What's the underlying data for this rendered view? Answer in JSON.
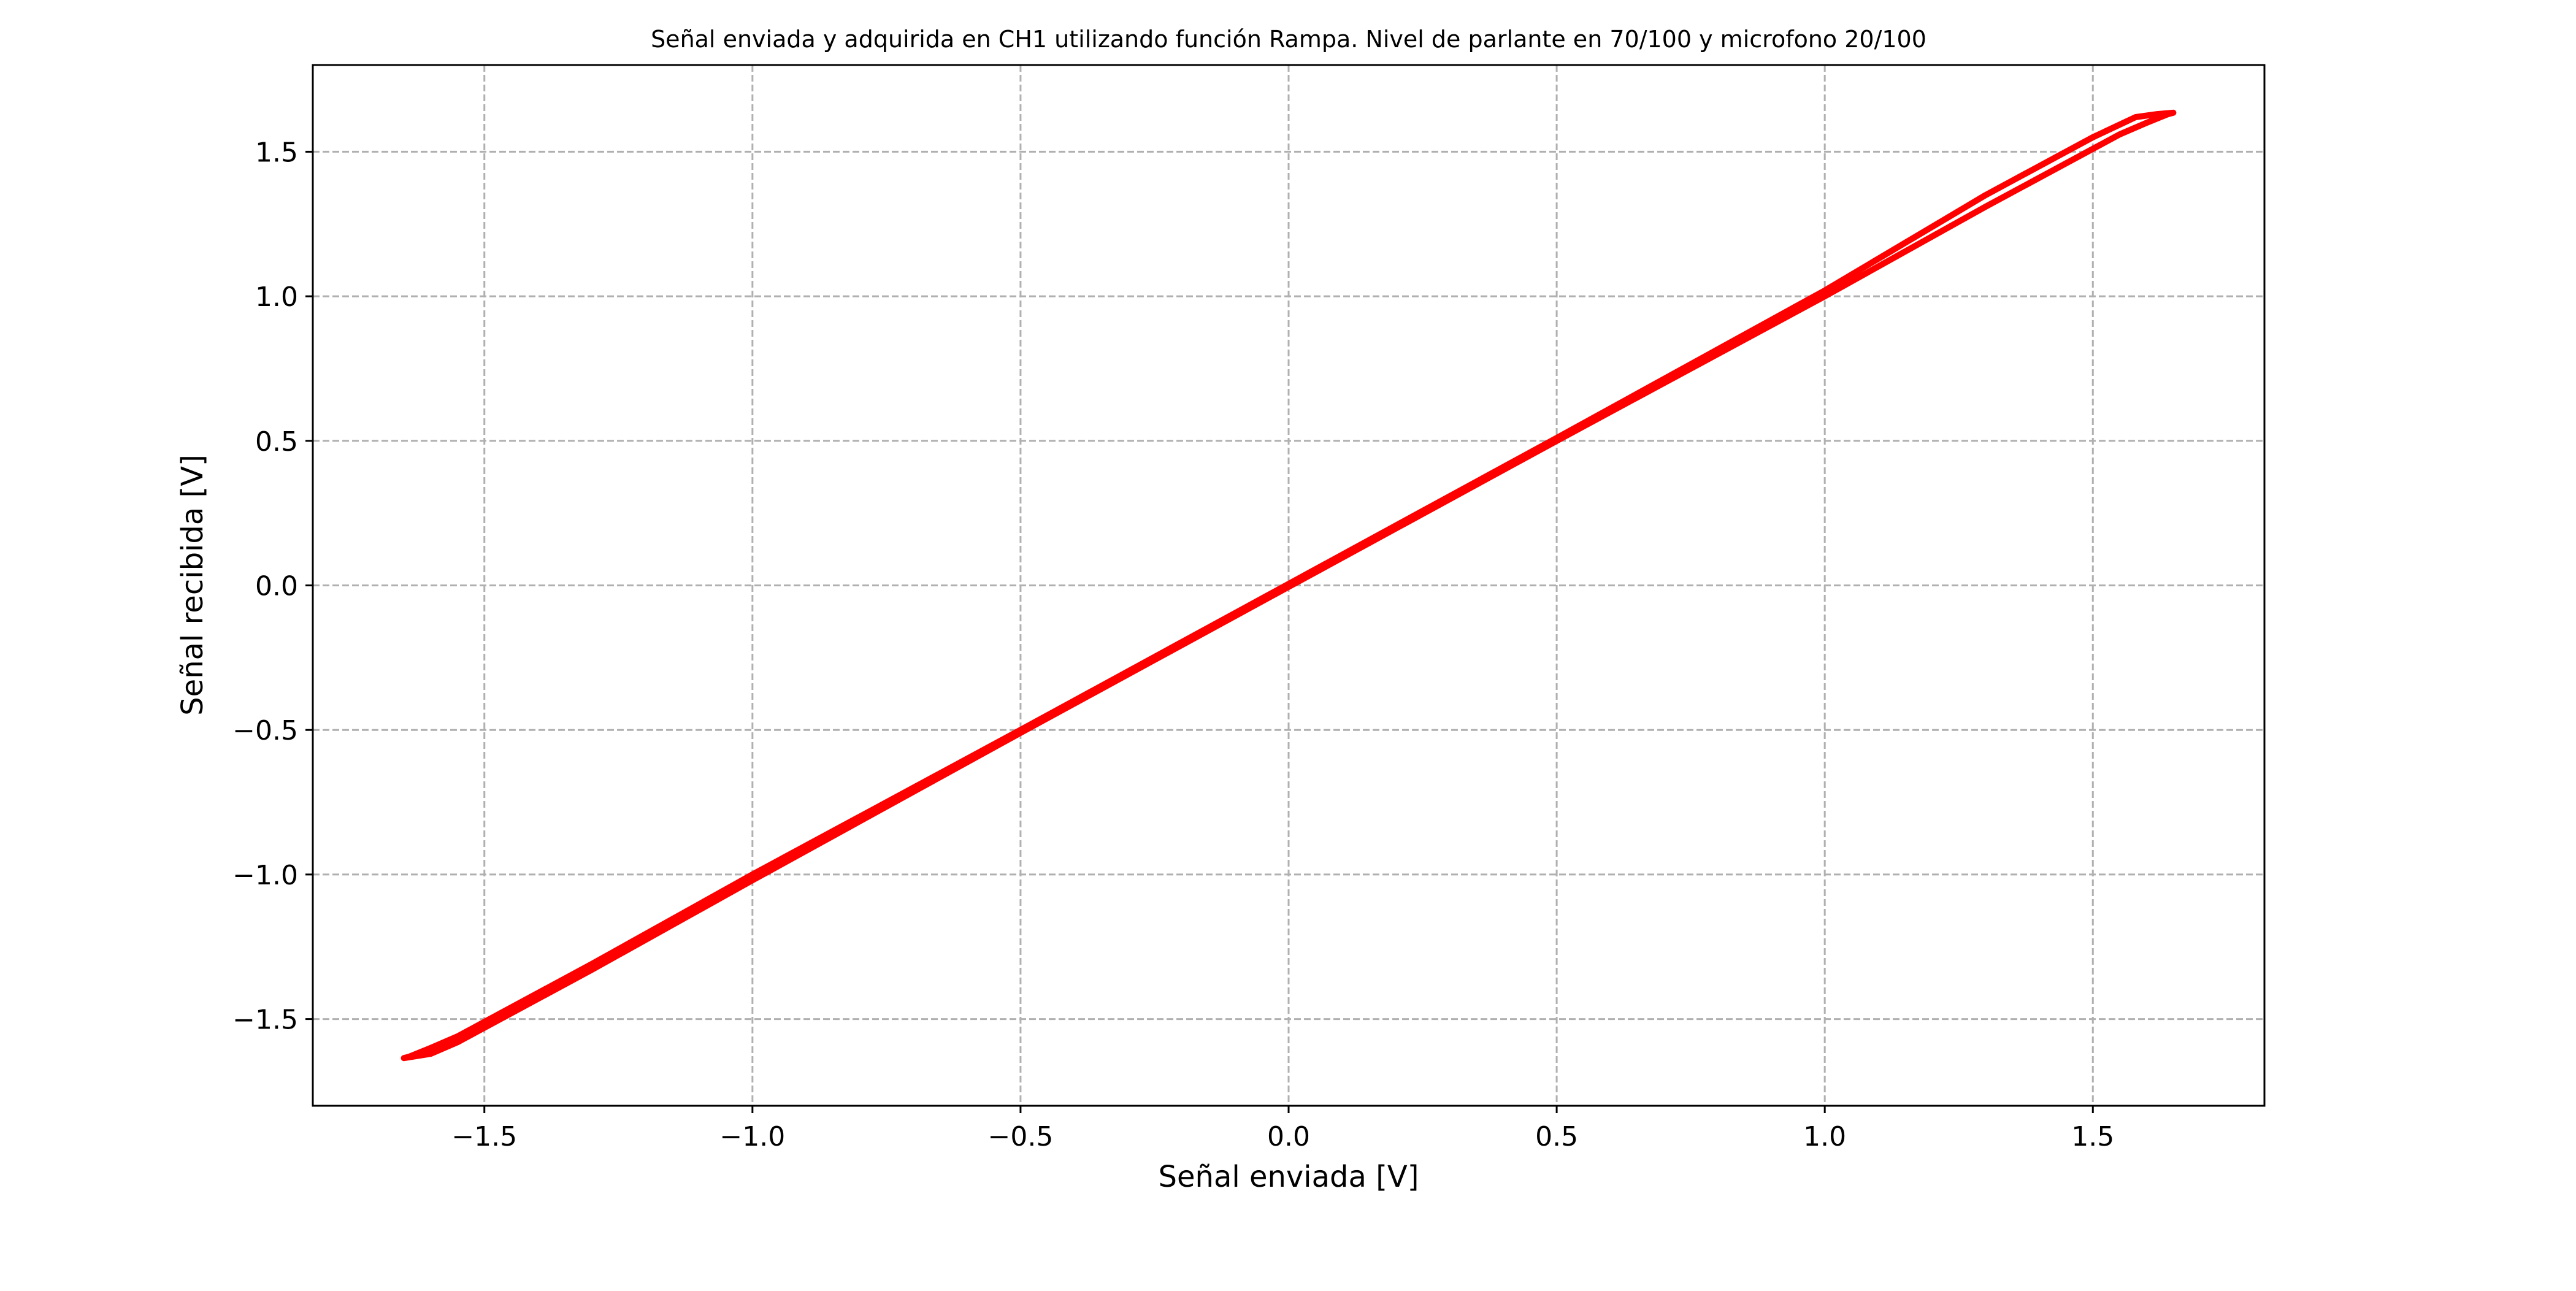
{
  "chart_data": {
    "type": "line",
    "title": "Señal enviada y adquirida en CH1 utilizando función Rampa. Nivel de parlante en 70/100 y microfono 20/100",
    "xlabel": "Señal enviada [V]",
    "ylabel": "Señal recibida [V]",
    "xlim": [
      -1.82,
      1.82
    ],
    "ylim": [
      -1.8,
      1.8
    ],
    "xticks": [
      -1.5,
      -1.0,
      -0.5,
      0.0,
      0.5,
      1.0,
      1.5
    ],
    "yticks": [
      -1.5,
      -1.0,
      -0.5,
      0.0,
      0.5,
      1.0,
      1.5
    ],
    "xtick_labels": [
      "−1.5",
      "−1.0",
      "−0.5",
      "0.0",
      "0.5",
      "1.0",
      "1.5"
    ],
    "ytick_labels": [
      "−1.5",
      "−1.0",
      "−0.5",
      "0.0",
      "0.5",
      "1.0",
      "1.5"
    ],
    "grid": true,
    "legend": false,
    "series": [
      {
        "color": "#ff0000",
        "x": [
          -1.65,
          -1.6,
          -1.55,
          -1.5,
          -1.3,
          -1.0,
          -0.5,
          0.0,
          0.5,
          1.0,
          1.3,
          1.5,
          1.55,
          1.6,
          1.64,
          1.65,
          1.62,
          1.58,
          1.5,
          1.3,
          1.0,
          0.5,
          0.0,
          -0.5,
          -1.0,
          -1.3,
          -1.5,
          -1.55,
          -1.6,
          -1.64,
          -1.65
        ],
        "y": [
          -1.635,
          -1.62,
          -1.58,
          -1.53,
          -1.33,
          -1.02,
          -0.51,
          -0.005,
          0.5,
          1.0,
          1.31,
          1.51,
          1.56,
          1.6,
          1.63,
          1.635,
          1.63,
          1.62,
          1.55,
          1.35,
          1.02,
          0.51,
          0.005,
          -0.5,
          -1.0,
          -1.31,
          -1.51,
          -1.56,
          -1.6,
          -1.63,
          -1.635
        ]
      }
    ]
  }
}
